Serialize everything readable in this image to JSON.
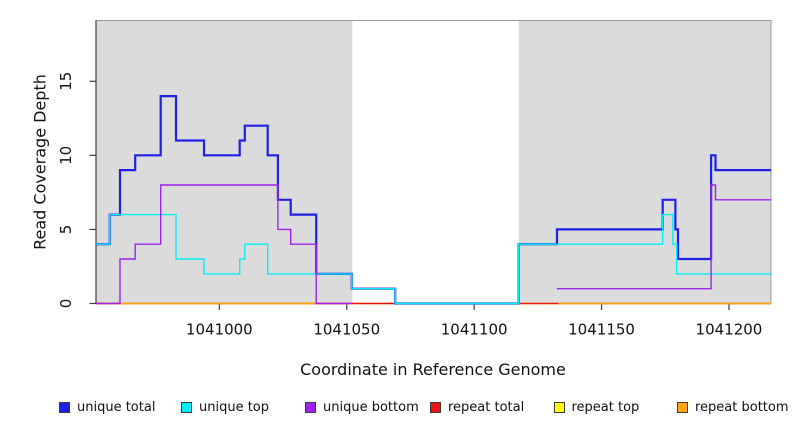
{
  "chart_data": {
    "type": "line",
    "subtype": "step",
    "title": "",
    "xlabel": "Coordinate in Reference Genome",
    "ylabel": "Read Coverage Depth",
    "xlim": [
      1040951.6,
      1041216.5
    ],
    "ylim": [
      0,
      19.1
    ],
    "xticks": [
      1041000,
      1041050,
      1041100,
      1041150,
      1041200
    ],
    "yticks": [
      0,
      5,
      10,
      15
    ],
    "grid": false,
    "legend_position": "bottom",
    "background_color": "#ffffff",
    "shaded_color": "#dbdbdb",
    "plot_border_color": "#9a9a9a",
    "axis_color": "#3c3c3c",
    "text_color": "#111111",
    "shaded_regions": [
      [
        1040951.6,
        1041052.2
      ],
      [
        1041117.5,
        1041216.5
      ]
    ],
    "draw_order": [
      4,
      3,
      5,
      0,
      1,
      2
    ],
    "series": [
      {
        "name": "unique total",
        "color": "#1f1fe8",
        "line_width": 2.2,
        "segments": [
          {
            "steps": [
              [
                1040951.6,
                4
              ],
              [
                1040957,
                6
              ],
              [
                1040961,
                9
              ],
              [
                1040967,
                10
              ],
              [
                1040977,
                14
              ],
              [
                1040983,
                11
              ],
              [
                1040994,
                10
              ],
              [
                1041008,
                11
              ],
              [
                1041010,
                12
              ],
              [
                1041019,
                10
              ],
              [
                1041023,
                7
              ],
              [
                1041028,
                6
              ],
              [
                1041038,
                2
              ],
              [
                1041052,
                1
              ],
              [
                1041069,
                0
              ],
              [
                1041117.5,
                4
              ],
              [
                1041132.5,
                5
              ],
              [
                1041174,
                7
              ],
              [
                1041179,
                5
              ],
              [
                1041180,
                3
              ],
              [
                1041193,
                10
              ],
              [
                1041194.7,
                9
              ]
            ],
            "end": 1041216.5
          }
        ]
      },
      {
        "name": "unique top",
        "color": "#00f0f5",
        "line_width": 1.4,
        "segments": [
          {
            "steps": [
              [
                1040951.6,
                4
              ],
              [
                1040957,
                6
              ],
              [
                1040983,
                3
              ],
              [
                1040994,
                2
              ],
              [
                1041008,
                3
              ],
              [
                1041010,
                4
              ],
              [
                1041019,
                2
              ],
              [
                1041052,
                1
              ],
              [
                1041069,
                0
              ],
              [
                1041117.5,
                4
              ],
              [
                1041174,
                6
              ],
              [
                1041178,
                4
              ],
              [
                1041179.5,
                2
              ]
            ],
            "end": 1041216.5
          }
        ]
      },
      {
        "name": "unique bottom",
        "color": "#a020f0",
        "line_width": 1.4,
        "segments": [
          {
            "steps": [
              [
                1040951.6,
                0
              ],
              [
                1040961,
                3
              ],
              [
                1040967,
                4
              ],
              [
                1040977,
                8
              ],
              [
                1041023,
                5
              ],
              [
                1041028,
                4
              ],
              [
                1041038,
                0
              ]
            ],
            "end": 1041052.2
          },
          {
            "steps": [
              [
                1041132.5,
                1
              ],
              [
                1041193,
                8
              ],
              [
                1041194.7,
                7
              ]
            ],
            "end": 1041216.5
          }
        ]
      },
      {
        "name": "repeat total",
        "color": "#ee1111",
        "line_width": 1.4,
        "segments": [
          {
            "steps": [
              [
                1040951.6,
                0
              ]
            ],
            "end": 1041216.5
          }
        ]
      },
      {
        "name": "repeat top",
        "color": "#ffff00",
        "line_width": 1.4,
        "segments": [
          {
            "steps": [
              [
                1040951.6,
                0
              ]
            ],
            "end": 1041216.5
          }
        ]
      },
      {
        "name": "repeat bottom",
        "color": "#ffa513",
        "line_width": 1.4,
        "segments": [
          {
            "steps": [
              [
                1040951.6,
                0
              ]
            ],
            "end": 1041038
          },
          {
            "steps": [
              [
                1041133,
                0
              ]
            ],
            "end": 1041216.5
          }
        ]
      }
    ]
  }
}
